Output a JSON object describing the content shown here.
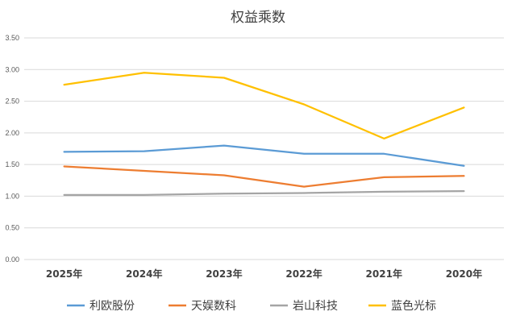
{
  "chart_data": {
    "type": "line",
    "title": "权益乘数",
    "xlabel": "",
    "ylabel": "",
    "categories": [
      "2025年",
      "2024年",
      "2023年",
      "2022年",
      "2021年",
      "2020年"
    ],
    "ylim": [
      0,
      3.5
    ],
    "yticks": [
      "0.00",
      "0.50",
      "1.00",
      "1.50",
      "2.00",
      "2.50",
      "3.00",
      "3.50"
    ],
    "grid": true,
    "legend_position": "bottom",
    "series": [
      {
        "name": "利欧股份",
        "color": "#5B9BD5",
        "values": [
          1.7,
          1.71,
          1.8,
          1.67,
          1.67,
          1.48
        ]
      },
      {
        "name": "天娱数科",
        "color": "#ED7D31",
        "values": [
          1.47,
          1.4,
          1.33,
          1.15,
          1.3,
          1.32
        ]
      },
      {
        "name": "岩山科技",
        "color": "#A5A5A5",
        "values": [
          1.02,
          1.02,
          1.04,
          1.05,
          1.07,
          1.08
        ]
      },
      {
        "name": "蓝色光标",
        "color": "#FFC000",
        "values": [
          2.76,
          2.95,
          2.87,
          2.45,
          1.91,
          2.4
        ]
      }
    ]
  }
}
